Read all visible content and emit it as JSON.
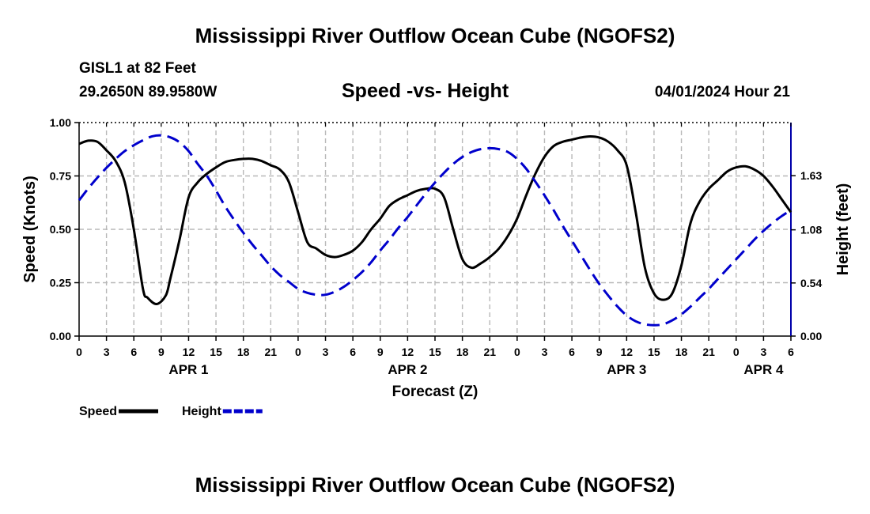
{
  "page": {
    "title": "Mississippi River Outflow Ocean Cube (NGOFS2)",
    "title_repeat": "Mississippi River Outflow Ocean Cube (NGOFS2)",
    "station": "GISL1 at 82 Feet",
    "coordinates": "29.2650N  89.9580W",
    "subtitle": "Speed -vs- Height",
    "datetime": "04/01/2024 Hour 21"
  },
  "chart_data": {
    "type": "line",
    "title": "Speed -vs- Height",
    "xlabel": "Forecast (Z)",
    "ylabel": "Speed (Knots)",
    "y2label": "Height (feet)",
    "xlim": [
      0,
      78
    ],
    "ylim": [
      0,
      1.0
    ],
    "y2lim": [
      0,
      2.17
    ],
    "x_ticks": [
      0,
      3,
      6,
      9,
      12,
      15,
      18,
      21,
      24,
      27,
      30,
      33,
      36,
      39,
      42,
      45,
      48,
      51,
      54,
      57,
      60,
      63,
      66,
      69,
      72,
      75,
      78
    ],
    "x_tick_labels": [
      "0",
      "3",
      "6",
      "9",
      "12",
      "15",
      "18",
      "21",
      "0",
      "3",
      "6",
      "9",
      "12",
      "15",
      "18",
      "21",
      "0",
      "3",
      "6",
      "9",
      "12",
      "15",
      "18",
      "21",
      "0",
      "3",
      "6"
    ],
    "day_labels": [
      {
        "label": "APR 1",
        "x": 12
      },
      {
        "label": "APR 2",
        "x": 36
      },
      {
        "label": "APR 3",
        "x": 60
      },
      {
        "label": "APR 4",
        "x": 75
      }
    ],
    "y_ticks": [
      0.0,
      0.25,
      0.5,
      0.75,
      1.0
    ],
    "y_tick_labels": [
      "0.00",
      "0.25",
      "0.50",
      "0.75",
      "1.00"
    ],
    "y2_ticks": [
      0.0,
      0.54,
      1.08,
      1.63
    ],
    "y2_tick_labels": [
      "0.00",
      "0.54",
      "1.08",
      "1.63"
    ],
    "grid": true,
    "series": [
      {
        "name": "Speed",
        "axis": "left",
        "color": "#000000",
        "style": "solid",
        "points": [
          [
            0,
            0.9
          ],
          [
            1,
            0.915
          ],
          [
            2,
            0.91
          ],
          [
            3,
            0.87
          ],
          [
            4,
            0.82
          ],
          [
            5,
            0.72
          ],
          [
            6,
            0.5
          ],
          [
            7,
            0.22
          ],
          [
            7.5,
            0.18
          ],
          [
            8.5,
            0.15
          ],
          [
            9.5,
            0.19
          ],
          [
            10,
            0.27
          ],
          [
            11,
            0.45
          ],
          [
            12,
            0.65
          ],
          [
            13,
            0.72
          ],
          [
            14,
            0.76
          ],
          [
            15,
            0.79
          ],
          [
            16,
            0.815
          ],
          [
            17,
            0.825
          ],
          [
            18,
            0.83
          ],
          [
            19,
            0.83
          ],
          [
            20,
            0.82
          ],
          [
            21,
            0.8
          ],
          [
            22,
            0.78
          ],
          [
            23,
            0.72
          ],
          [
            24,
            0.58
          ],
          [
            25,
            0.44
          ],
          [
            26,
            0.41
          ],
          [
            27,
            0.38
          ],
          [
            28,
            0.37
          ],
          [
            29,
            0.38
          ],
          [
            30,
            0.4
          ],
          [
            31,
            0.44
          ],
          [
            32,
            0.5
          ],
          [
            33,
            0.55
          ],
          [
            34,
            0.61
          ],
          [
            35,
            0.64
          ],
          [
            36,
            0.66
          ],
          [
            37,
            0.68
          ],
          [
            38,
            0.69
          ],
          [
            39,
            0.69
          ],
          [
            40,
            0.65
          ],
          [
            41,
            0.5
          ],
          [
            42,
            0.36
          ],
          [
            43,
            0.32
          ],
          [
            44,
            0.34
          ],
          [
            45,
            0.37
          ],
          [
            46,
            0.41
          ],
          [
            47,
            0.47
          ],
          [
            48,
            0.55
          ],
          [
            49,
            0.66
          ],
          [
            50,
            0.76
          ],
          [
            51,
            0.84
          ],
          [
            52,
            0.89
          ],
          [
            53,
            0.91
          ],
          [
            54,
            0.92
          ],
          [
            55,
            0.93
          ],
          [
            56,
            0.935
          ],
          [
            57,
            0.93
          ],
          [
            58,
            0.91
          ],
          [
            59,
            0.87
          ],
          [
            60,
            0.8
          ],
          [
            61,
            0.58
          ],
          [
            62,
            0.32
          ],
          [
            63,
            0.2
          ],
          [
            64,
            0.17
          ],
          [
            65,
            0.2
          ],
          [
            66,
            0.33
          ],
          [
            67,
            0.53
          ],
          [
            68,
            0.63
          ],
          [
            69,
            0.69
          ],
          [
            70,
            0.73
          ],
          [
            71,
            0.77
          ],
          [
            72,
            0.79
          ],
          [
            73,
            0.795
          ],
          [
            74,
            0.78
          ],
          [
            75,
            0.75
          ],
          [
            76,
            0.7
          ],
          [
            77,
            0.64
          ],
          [
            78,
            0.58
          ]
        ]
      },
      {
        "name": "Height",
        "axis": "right",
        "color": "#0000cc",
        "style": "dashed",
        "points": [
          [
            0,
            1.38
          ],
          [
            1,
            1.5
          ],
          [
            2,
            1.61
          ],
          [
            3,
            1.71
          ],
          [
            4,
            1.8
          ],
          [
            5,
            1.88
          ],
          [
            6,
            1.94
          ],
          [
            7,
            1.99
          ],
          [
            8,
            2.03
          ],
          [
            9,
            2.04
          ],
          [
            10,
            2.02
          ],
          [
            11,
            1.97
          ],
          [
            12,
            1.88
          ],
          [
            13,
            1.75
          ],
          [
            14,
            1.63
          ],
          [
            15,
            1.48
          ],
          [
            16,
            1.32
          ],
          [
            17,
            1.18
          ],
          [
            18,
            1.05
          ],
          [
            19,
            0.93
          ],
          [
            20,
            0.82
          ],
          [
            21,
            0.71
          ],
          [
            22,
            0.62
          ],
          [
            23,
            0.55
          ],
          [
            24,
            0.48
          ],
          [
            25,
            0.44
          ],
          [
            26,
            0.42
          ],
          [
            27,
            0.42
          ],
          [
            28,
            0.45
          ],
          [
            29,
            0.5
          ],
          [
            30,
            0.57
          ],
          [
            31,
            0.65
          ],
          [
            32,
            0.75
          ],
          [
            33,
            0.87
          ],
          [
            34,
            0.98
          ],
          [
            35,
            1.1
          ],
          [
            36,
            1.21
          ],
          [
            37,
            1.33
          ],
          [
            38,
            1.45
          ],
          [
            39,
            1.56
          ],
          [
            40,
            1.66
          ],
          [
            41,
            1.75
          ],
          [
            42,
            1.82
          ],
          [
            43,
            1.87
          ],
          [
            44,
            1.9
          ],
          [
            45,
            1.91
          ],
          [
            46,
            1.9
          ],
          [
            47,
            1.87
          ],
          [
            48,
            1.8
          ],
          [
            49,
            1.7
          ],
          [
            50,
            1.57
          ],
          [
            51,
            1.43
          ],
          [
            52,
            1.28
          ],
          [
            53,
            1.12
          ],
          [
            54,
            0.97
          ],
          [
            55,
            0.82
          ],
          [
            56,
            0.67
          ],
          [
            57,
            0.53
          ],
          [
            58,
            0.41
          ],
          [
            59,
            0.3
          ],
          [
            60,
            0.21
          ],
          [
            61,
            0.15
          ],
          [
            62,
            0.12
          ],
          [
            63,
            0.11
          ],
          [
            64,
            0.12
          ],
          [
            65,
            0.16
          ],
          [
            66,
            0.22
          ],
          [
            67,
            0.3
          ],
          [
            68,
            0.39
          ],
          [
            69,
            0.48
          ],
          [
            70,
            0.58
          ],
          [
            71,
            0.68
          ],
          [
            72,
            0.78
          ],
          [
            73,
            0.88
          ],
          [
            74,
            0.98
          ],
          [
            75,
            1.07
          ],
          [
            76,
            1.15
          ],
          [
            77,
            1.22
          ],
          [
            78,
            1.28
          ]
        ]
      }
    ],
    "legend": [
      {
        "label": "Speed",
        "color": "#000000",
        "style": "solid"
      },
      {
        "label": "Height",
        "color": "#0000cc",
        "style": "dashed"
      }
    ],
    "legend_position": "bottom-left"
  }
}
